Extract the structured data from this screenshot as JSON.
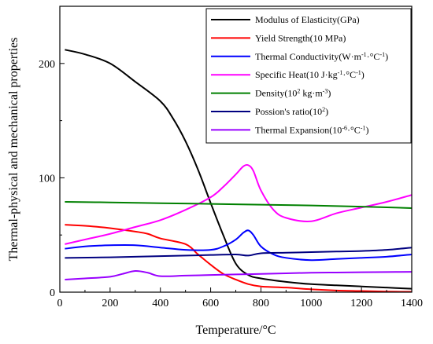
{
  "chart_data": {
    "type": "line",
    "xlabel": "Temperature/°C",
    "ylabel": "Thermal-physical and mechanical properties",
    "xlim": [
      0,
      1400
    ],
    "ylim": [
      0,
      250
    ],
    "xticks": [
      0,
      200,
      400,
      600,
      800,
      1000,
      1200,
      1400
    ],
    "yticks": [
      0,
      100,
      200
    ],
    "legend_position": "top-right",
    "series": [
      {
        "name": "Modulus of Elasticity(GPa)",
        "color": "#000000",
        "x": [
          20,
          100,
          200,
          300,
          400,
          450,
          500,
          550,
          600,
          650,
          700,
          750,
          800,
          900,
          1000,
          1100,
          1200,
          1300,
          1400
        ],
        "y": [
          212,
          208,
          200,
          184,
          167,
          152,
          132,
          107,
          78,
          50,
          25,
          15,
          12,
          9,
          7,
          6,
          5,
          4,
          3
        ]
      },
      {
        "name": "Yield Strength(10 MPa)",
        "color": "#ff0000",
        "x": [
          20,
          100,
          200,
          300,
          350,
          400,
          500,
          550,
          600,
          650,
          700,
          750,
          800,
          900,
          1000,
          1100,
          1200,
          1300,
          1400
        ],
        "y": [
          59,
          58,
          56,
          53,
          51,
          47,
          42,
          33,
          24,
          16,
          11,
          7,
          5,
          4,
          2.5,
          1.5,
          1,
          0.5,
          0.3
        ]
      },
      {
        "name": "Thermal Conductivity(W·m-1·°C-1)",
        "color": "#0000ff",
        "x": [
          20,
          100,
          200,
          300,
          400,
          500,
          600,
          650,
          700,
          730,
          750,
          770,
          800,
          850,
          900,
          1000,
          1100,
          1200,
          1300,
          1400
        ],
        "y": [
          38,
          40,
          41,
          41,
          39,
          37,
          37,
          40,
          46,
          52,
          54,
          50,
          40,
          33,
          30,
          28,
          29,
          30,
          31,
          33
        ]
      },
      {
        "name": "Specific Heat(10 J·kg-1·°C-1)",
        "color": "#ff00ff",
        "x": [
          20,
          100,
          200,
          300,
          400,
          500,
          600,
          650,
          700,
          730,
          750,
          770,
          800,
          850,
          900,
          1000,
          1100,
          1200,
          1300,
          1400
        ],
        "y": [
          42,
          46,
          51,
          57,
          63,
          72,
          83,
          92,
          103,
          110,
          111,
          106,
          89,
          72,
          65,
          62,
          69,
          74,
          79,
          85
        ]
      },
      {
        "name": "Density(102 kg·m-3)",
        "color": "#008000",
        "x": [
          20,
          200,
          400,
          600,
          800,
          1000,
          1200,
          1400
        ],
        "y": [
          79,
          78.5,
          77.8,
          77.2,
          76.5,
          75.8,
          74.8,
          73.5
        ]
      },
      {
        "name": "Possion's ratio(102)",
        "color": "#000080",
        "x": [
          20,
          200,
          400,
          600,
          700,
          750,
          800,
          900,
          1000,
          1100,
          1200,
          1300,
          1400
        ],
        "y": [
          30,
          30.5,
          31.5,
          32.5,
          33,
          32,
          34,
          34.5,
          35,
          35.5,
          36,
          37,
          39
        ]
      },
      {
        "name": "Thermal Expansion(10-6·°C-1)",
        "color": "#9900ff",
        "x": [
          20,
          100,
          200,
          250,
          300,
          350,
          400,
          500,
          600,
          700,
          800,
          900,
          1000,
          1100,
          1200,
          1300,
          1400
        ],
        "y": [
          11,
          12,
          13.5,
          16,
          18.5,
          17,
          14,
          14.5,
          15,
          15.5,
          16,
          16.5,
          17,
          17.2,
          17.4,
          17.6,
          17.8
        ]
      }
    ],
    "legend": [
      {
        "parts": [
          {
            "t": "Modulus of Elasticity(GPa)"
          }
        ]
      },
      {
        "parts": [
          {
            "t": "Yield Strength(10 MPa)"
          }
        ]
      },
      {
        "parts": [
          {
            "t": "Thermal Conductivity(W·m"
          },
          {
            "t": "-1",
            "sup": true
          },
          {
            "t": "·°C"
          },
          {
            "t": "-1",
            "sup": true
          },
          {
            "t": ")"
          }
        ]
      },
      {
        "parts": [
          {
            "t": "Specific Heat(10 J·kg"
          },
          {
            "t": "-1",
            "sup": true
          },
          {
            "t": "·°C"
          },
          {
            "t": "-1",
            "sup": true
          },
          {
            "t": ")"
          }
        ]
      },
      {
        "parts": [
          {
            "t": " Density(10"
          },
          {
            "t": "2",
            "sup": true
          },
          {
            "t": " kg·m"
          },
          {
            "t": "-3",
            "sup": true
          },
          {
            "t": ")"
          }
        ]
      },
      {
        "parts": [
          {
            "t": "Possion's ratio(10"
          },
          {
            "t": "2",
            "sup": true
          },
          {
            "t": ")"
          }
        ]
      },
      {
        "parts": [
          {
            "t": "Thermal Expansion(10"
          },
          {
            "t": "-6",
            "sup": true
          },
          {
            "t": "·°C"
          },
          {
            "t": "-1",
            "sup": true
          },
          {
            "t": ")"
          }
        ]
      }
    ]
  }
}
